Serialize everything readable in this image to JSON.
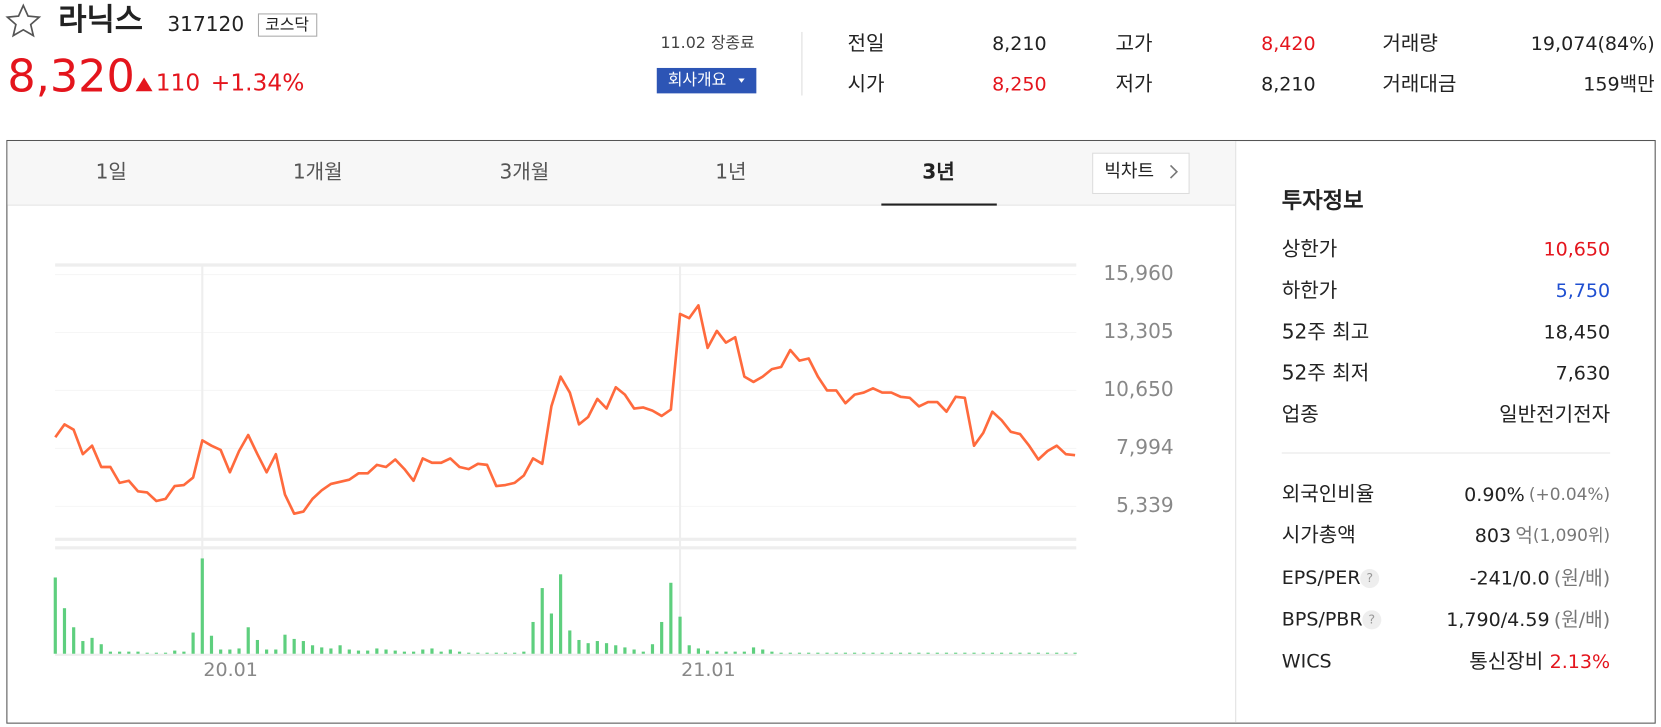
{
  "header": {
    "name": "라닉스",
    "code": "317120",
    "market": "코스닥"
  },
  "quote": {
    "price": "8,320",
    "change": "110",
    "change_rate": "+1.34%",
    "status": "11.02 장종료",
    "company_button": "회사개요"
  },
  "summary": [
    {
      "label": "전일",
      "value": "8,210"
    },
    {
      "label": "고가",
      "value": "8,420"
    },
    {
      "label": "거래량",
      "value": "19,074(84%)"
    },
    {
      "label": "시가",
      "value": "8,250"
    },
    {
      "label": "저가",
      "value": "8,210"
    },
    {
      "label": "거래대금",
      "value": "159백만"
    }
  ],
  "tabs": [
    "1일",
    "1개월",
    "3개월",
    "1년",
    "3년"
  ],
  "big_chart_button": "빅차트",
  "chart_data": {
    "type": "line",
    "color": "#ff6a3d",
    "categories": [
      null,
      null,
      null,
      null,
      null,
      null,
      null,
      null,
      null,
      null,
      null,
      null,
      null,
      null,
      null,
      null,
      "20.01",
      null,
      null,
      null,
      null,
      null,
      null,
      null,
      null,
      null,
      null,
      null,
      null,
      null,
      null,
      null,
      null,
      null,
      null,
      null,
      null,
      null,
      null,
      null,
      null,
      null,
      null,
      null,
      null,
      null,
      null,
      null,
      null,
      null,
      null,
      null,
      null,
      null,
      null,
      null,
      null,
      null,
      null,
      null,
      null,
      null,
      null,
      null,
      null,
      null,
      null,
      null,
      "21.01",
      null,
      null,
      null,
      null,
      null,
      null,
      null,
      null,
      null,
      null,
      null,
      null,
      null,
      null,
      null,
      null,
      null,
      null,
      null,
      null,
      null,
      null,
      null,
      null,
      null,
      null,
      null,
      null,
      null,
      null,
      null,
      null,
      null,
      null,
      null,
      null,
      null,
      null,
      null,
      null,
      null,
      null,
      null
    ],
    "values": [
      8509,
      9093,
      8850,
      7730,
      8119,
      7145,
      7145,
      6415,
      6512,
      6025,
      5977,
      5587,
      5684,
      6269,
      6317,
      6658,
      8363,
      8119,
      7925,
      6902,
      7876,
      8607,
      7730,
      6902,
      7730,
      5880,
      5003,
      5100,
      5684,
      6074,
      6366,
      6464,
      6561,
      6853,
      6853,
      7243,
      7145,
      7487,
      7048,
      6512,
      7535,
      7340,
      7340,
      7535,
      7145,
      7048,
      7291,
      7243,
      6269,
      6317,
      6415,
      6756,
      7535,
      7291,
      9921,
      11285,
      10555,
      9093,
      9434,
      10262,
      9824,
      10798,
      10457,
      9824,
      9873,
      9726,
      9483,
      9775,
      14158,
      13963,
      14548,
      12600,
      13379,
      12843,
      13087,
      11285,
      11041,
      11285,
      11626,
      11724,
      12502,
      12015,
      12113,
      11285,
      10652,
      10652,
      10067,
      10457,
      10555,
      10749,
      10555,
      10555,
      10360,
      10311,
      9921,
      10116,
      10116,
      9678,
      10360,
      10311,
      8119,
      8704,
      9678,
      9288,
      8753,
      8655,
      8119,
      7487,
      7876,
      8119,
      7730,
      7681
    ],
    "volume": {
      "color": "#5ecf7e",
      "values": [
        72,
        43,
        25,
        12,
        15,
        9,
        2,
        2,
        2,
        2,
        1,
        1,
        1,
        3,
        2,
        20,
        90,
        17,
        4,
        4,
        5,
        25,
        13,
        4,
        4,
        18,
        14,
        12,
        8,
        6,
        5,
        8,
        4,
        3,
        3,
        5,
        4,
        3,
        2,
        2,
        4,
        5,
        2,
        4,
        2,
        1,
        1,
        1,
        1,
        1,
        1,
        2,
        30,
        62,
        38,
        75,
        22,
        13,
        10,
        12,
        10,
        8,
        6,
        4,
        2,
        9,
        30,
        67,
        35,
        8,
        5,
        3,
        2,
        2,
        2,
        2,
        6,
        4,
        2,
        1,
        1,
        1,
        1,
        1,
        1,
        1,
        1,
        1,
        1,
        1,
        1,
        1,
        1,
        1,
        1,
        1,
        1,
        1,
        1,
        1,
        1,
        1,
        1,
        1,
        1,
        1,
        1,
        1,
        1,
        1,
        1,
        1
      ]
    },
    "ylim": [
      3829,
      16398
    ],
    "yticks": [
      {
        "value": 15960,
        "label": "15,960"
      },
      {
        "value": 13305,
        "label": "13,305"
      },
      {
        "value": 10650,
        "label": "10,650"
      },
      {
        "value": 7994,
        "label": "7,994"
      },
      {
        "value": 5339,
        "label": "5,339"
      }
    ]
  },
  "invest_info": {
    "title": "투자정보",
    "rows": [
      {
        "label": "상한가",
        "value": "10,650"
      },
      {
        "label": "하한가",
        "value": "5,750"
      },
      {
        "label": "52주 최고",
        "value": "18,450"
      },
      {
        "label": "52주 최저",
        "value": "7,630"
      },
      {
        "label": "업종",
        "value": "일반전기전자"
      }
    ],
    "rows2": [
      {
        "label": "외국인비율",
        "value": "0.90%",
        "note": "(+0.04%)"
      },
      {
        "label": "시가총액",
        "value": "803",
        "unit": "억",
        "note": "(1,090위)"
      },
      {
        "label": "EPS/PER",
        "value": "-241/0.0",
        "note": "(원/배)"
      },
      {
        "label": "BPS/PBR",
        "value": "1,790/4.59",
        "note": "(원/배)"
      },
      {
        "label": "WICS",
        "value": "통신장비",
        "note": "2.13%"
      }
    ]
  }
}
